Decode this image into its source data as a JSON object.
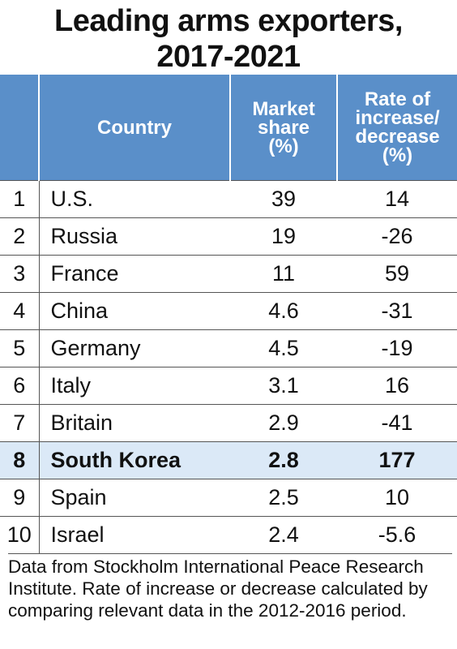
{
  "title_line1": "Leading arms exporters,",
  "title_line2": "2017-2021",
  "chart_data": {
    "type": "table",
    "title": "Leading arms exporters, 2017-2021",
    "columns": {
      "rank": "",
      "country": "Country",
      "share": [
        "Market",
        "share",
        "(%)"
      ],
      "rate": [
        "Rate of",
        "increase/",
        "decrease",
        "(%)"
      ]
    },
    "rows": [
      {
        "rank": "1",
        "country": "U.S.",
        "share": "39",
        "rate": "14"
      },
      {
        "rank": "2",
        "country": "Russia",
        "share": "19",
        "rate": "-26"
      },
      {
        "rank": "3",
        "country": "France",
        "share": "11",
        "rate": "59"
      },
      {
        "rank": "4",
        "country": "China",
        "share": "4.6",
        "rate": "-31"
      },
      {
        "rank": "5",
        "country": "Germany",
        "share": "4.5",
        "rate": "-19"
      },
      {
        "rank": "6",
        "country": "Italy",
        "share": "3.1",
        "rate": "16"
      },
      {
        "rank": "7",
        "country": "Britain",
        "share": "2.9",
        "rate": "-41"
      },
      {
        "rank": "8",
        "country": "South Korea",
        "share": "2.8",
        "rate": "177",
        "highlight": true
      },
      {
        "rank": "9",
        "country": "Spain",
        "share": "2.5",
        "rate": "10"
      },
      {
        "rank": "10",
        "country": "Israel",
        "share": "2.4",
        "rate": "-5.6"
      }
    ],
    "header_color": "#5a8fc9",
    "highlight_color": "#dbe9f7"
  },
  "note": "Data from Stockholm International Peace Research Institute. Rate of increase or decrease calculated by comparing relevant data in the 2012-2016 period."
}
